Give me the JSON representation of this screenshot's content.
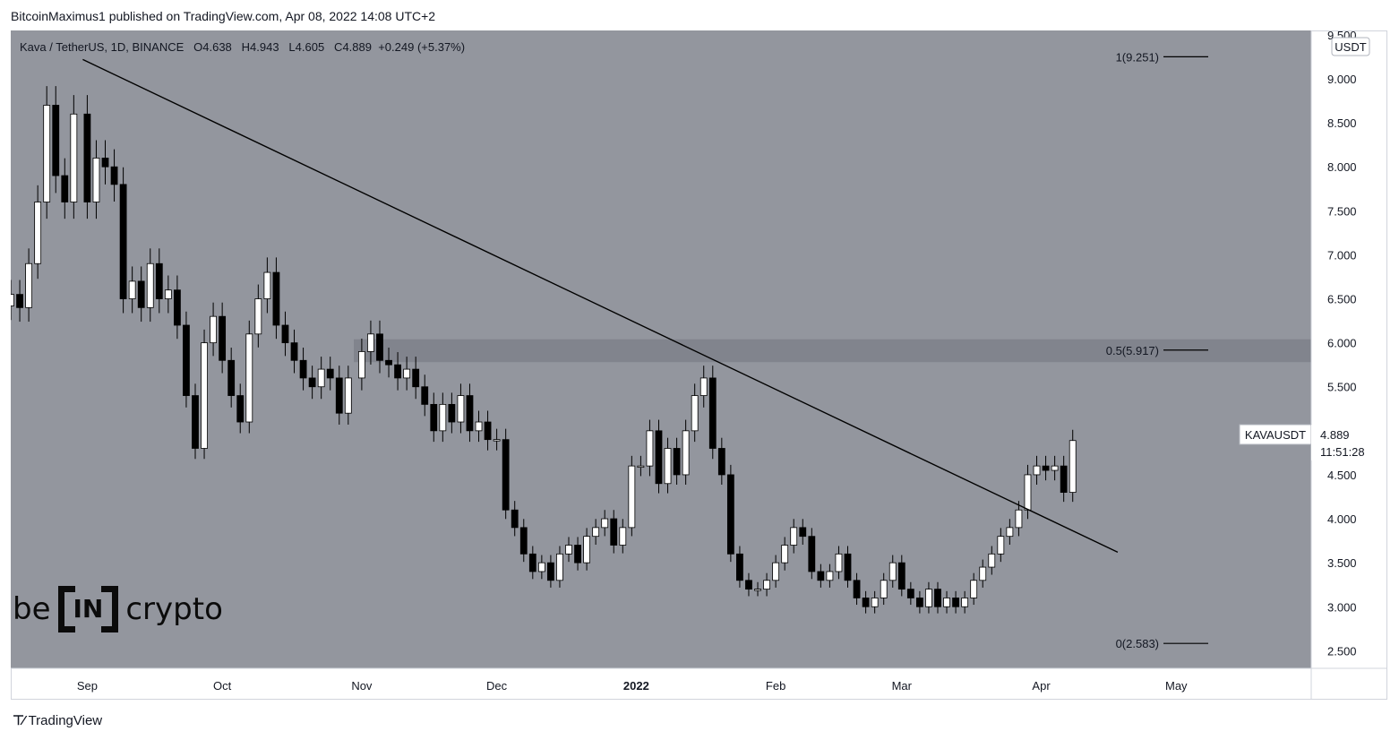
{
  "header": {
    "attribution": "BitcoinMaximus1 published on TradingView.com, Apr 08, 2022 14:08 UTC+2"
  },
  "legend": {
    "symbol": "Kava / TetherUS, 1D, BINANCE",
    "o_label": "O",
    "o_value": "4.638",
    "h_label": "H",
    "h_value": "4.943",
    "l_label": "L",
    "l_value": "4.605",
    "c_label": "C",
    "c_value": "4.889",
    "change": "+0.249 (+5.37%)"
  },
  "currency_badge": "USDT",
  "price_tag": {
    "symbol": "KAVAUSDT",
    "price": "4.889",
    "countdown": "11:51:28"
  },
  "footer": {
    "logo_text": "TradingView"
  },
  "brand": {
    "pre": "be",
    "box": "IN",
    "post": "crypto"
  },
  "colors": {
    "background": "#93969e",
    "zone": "#7e8189",
    "candle_up": "#ffffff",
    "candle_down": "#000000",
    "line": "#000000"
  },
  "chart_data": {
    "type": "candlestick",
    "title": "Kava / TetherUS, 1D, BINANCE",
    "y_axis": {
      "ylim": [
        2.3,
        9.55
      ],
      "ticks": [
        "2.500",
        "3.000",
        "3.500",
        "4.000",
        "4.500",
        "5.000",
        "5.500",
        "6.000",
        "6.500",
        "7.000",
        "7.500",
        "8.000",
        "8.500",
        "9.000",
        "9.500"
      ]
    },
    "x_axis": {
      "ticks": [
        {
          "label": "Sep",
          "date": "2021-09-01"
        },
        {
          "label": "Oct",
          "date": "2021-10-01"
        },
        {
          "label": "Nov",
          "date": "2021-11-01"
        },
        {
          "label": "Dec",
          "date": "2021-12-01"
        },
        {
          "label": "2022",
          "date": "2022-01-01",
          "bold": true
        },
        {
          "label": "Feb",
          "date": "2022-02-01"
        },
        {
          "label": "Mar",
          "date": "2022-03-01"
        },
        {
          "label": "Apr",
          "date": "2022-04-01"
        },
        {
          "label": "May",
          "date": "2022-05-01"
        }
      ],
      "range": [
        "2021-08-15",
        "2022-05-31"
      ]
    },
    "fib_levels": [
      {
        "label": "1(9.251)",
        "value": 9.251
      },
      {
        "label": "0.5(5.917)",
        "value": 5.917
      },
      {
        "label": "0(2.583)",
        "value": 2.583
      }
    ],
    "resistance_zone": [
      5.78,
      6.04
    ],
    "trendline": {
      "start": {
        "date": "2021-08-31",
        "value": 9.22
      },
      "end": {
        "date": "2022-04-18",
        "value": 3.62
      }
    },
    "closes": [
      [
        "2021-08-15",
        6.55
      ],
      [
        "2021-08-17",
        6.4
      ],
      [
        "2021-08-19",
        6.9
      ],
      [
        "2021-08-21",
        7.6
      ],
      [
        "2021-08-23",
        8.7
      ],
      [
        "2021-08-25",
        7.9
      ],
      [
        "2021-08-27",
        7.6
      ],
      [
        "2021-08-29",
        8.6
      ],
      [
        "2021-09-01",
        7.6
      ],
      [
        "2021-09-03",
        8.1
      ],
      [
        "2021-09-05",
        8.0
      ],
      [
        "2021-09-07",
        7.8
      ],
      [
        "2021-09-09",
        6.5
      ],
      [
        "2021-09-11",
        6.7
      ],
      [
        "2021-09-13",
        6.4
      ],
      [
        "2021-09-15",
        6.9
      ],
      [
        "2021-09-17",
        6.5
      ],
      [
        "2021-09-19",
        6.6
      ],
      [
        "2021-09-21",
        6.2
      ],
      [
        "2021-09-23",
        5.4
      ],
      [
        "2021-09-25",
        4.8
      ],
      [
        "2021-09-27",
        6.0
      ],
      [
        "2021-09-29",
        6.3
      ],
      [
        "2021-10-01",
        5.8
      ],
      [
        "2021-10-03",
        5.4
      ],
      [
        "2021-10-05",
        5.1
      ],
      [
        "2021-10-07",
        6.1
      ],
      [
        "2021-10-09",
        6.5
      ],
      [
        "2021-10-11",
        6.8
      ],
      [
        "2021-10-13",
        6.2
      ],
      [
        "2021-10-15",
        6.0
      ],
      [
        "2021-10-17",
        5.8
      ],
      [
        "2021-10-19",
        5.6
      ],
      [
        "2021-10-21",
        5.5
      ],
      [
        "2021-10-23",
        5.7
      ],
      [
        "2021-10-25",
        5.6
      ],
      [
        "2021-10-27",
        5.2
      ],
      [
        "2021-10-29",
        5.6
      ],
      [
        "2021-11-01",
        5.9
      ],
      [
        "2021-11-03",
        6.1
      ],
      [
        "2021-11-05",
        5.8
      ],
      [
        "2021-11-07",
        5.75
      ],
      [
        "2021-11-09",
        5.6
      ],
      [
        "2021-11-11",
        5.7
      ],
      [
        "2021-11-13",
        5.5
      ],
      [
        "2021-11-15",
        5.3
      ],
      [
        "2021-11-17",
        5.0
      ],
      [
        "2021-11-19",
        5.3
      ],
      [
        "2021-11-21",
        5.1
      ],
      [
        "2021-11-23",
        5.4
      ],
      [
        "2021-11-25",
        5.0
      ],
      [
        "2021-11-27",
        5.1
      ],
      [
        "2021-11-29",
        4.9
      ],
      [
        "2021-12-01",
        4.9
      ],
      [
        "2021-12-03",
        4.1
      ],
      [
        "2021-12-05",
        3.9
      ],
      [
        "2021-12-07",
        3.6
      ],
      [
        "2021-12-09",
        3.4
      ],
      [
        "2021-12-11",
        3.5
      ],
      [
        "2021-12-13",
        3.3
      ],
      [
        "2021-12-15",
        3.6
      ],
      [
        "2021-12-17",
        3.7
      ],
      [
        "2021-12-19",
        3.5
      ],
      [
        "2021-12-21",
        3.8
      ],
      [
        "2021-12-23",
        3.9
      ],
      [
        "2021-12-25",
        4.0
      ],
      [
        "2021-12-27",
        3.7
      ],
      [
        "2021-12-29",
        3.9
      ],
      [
        "2021-12-31",
        4.6
      ],
      [
        "2022-01-02",
        4.6
      ],
      [
        "2022-01-04",
        5.0
      ],
      [
        "2022-01-06",
        4.4
      ],
      [
        "2022-01-08",
        4.8
      ],
      [
        "2022-01-10",
        4.5
      ],
      [
        "2022-01-12",
        5.0
      ],
      [
        "2022-01-14",
        5.4
      ],
      [
        "2022-01-16",
        5.6
      ],
      [
        "2022-01-18",
        4.8
      ],
      [
        "2022-01-20",
        4.5
      ],
      [
        "2022-01-22",
        3.6
      ],
      [
        "2022-01-24",
        3.3
      ],
      [
        "2022-01-26",
        3.2
      ],
      [
        "2022-01-28",
        3.2
      ],
      [
        "2022-01-30",
        3.3
      ],
      [
        "2022-02-01",
        3.5
      ],
      [
        "2022-02-03",
        3.7
      ],
      [
        "2022-02-05",
        3.9
      ],
      [
        "2022-02-07",
        3.8
      ],
      [
        "2022-02-09",
        3.4
      ],
      [
        "2022-02-11",
        3.3
      ],
      [
        "2022-02-13",
        3.4
      ],
      [
        "2022-02-15",
        3.6
      ],
      [
        "2022-02-17",
        3.3
      ],
      [
        "2022-02-19",
        3.1
      ],
      [
        "2022-02-21",
        3.0
      ],
      [
        "2022-02-23",
        3.1
      ],
      [
        "2022-02-25",
        3.3
      ],
      [
        "2022-02-27",
        3.5
      ],
      [
        "2022-03-01",
        3.2
      ],
      [
        "2022-03-03",
        3.1
      ],
      [
        "2022-03-05",
        3.0
      ],
      [
        "2022-03-07",
        3.2
      ],
      [
        "2022-03-09",
        3.0
      ],
      [
        "2022-03-11",
        3.1
      ],
      [
        "2022-03-13",
        3.0
      ],
      [
        "2022-03-15",
        3.1
      ],
      [
        "2022-03-17",
        3.3
      ],
      [
        "2022-03-19",
        3.45
      ],
      [
        "2022-03-21",
        3.6
      ],
      [
        "2022-03-23",
        3.8
      ],
      [
        "2022-03-25",
        3.9
      ],
      [
        "2022-03-27",
        4.1
      ],
      [
        "2022-03-29",
        4.5
      ],
      [
        "2022-03-31",
        4.6
      ],
      [
        "2022-04-02",
        4.55
      ],
      [
        "2022-04-04",
        4.6
      ],
      [
        "2022-04-06",
        4.3
      ],
      [
        "2022-04-08",
        4.889
      ]
    ]
  }
}
